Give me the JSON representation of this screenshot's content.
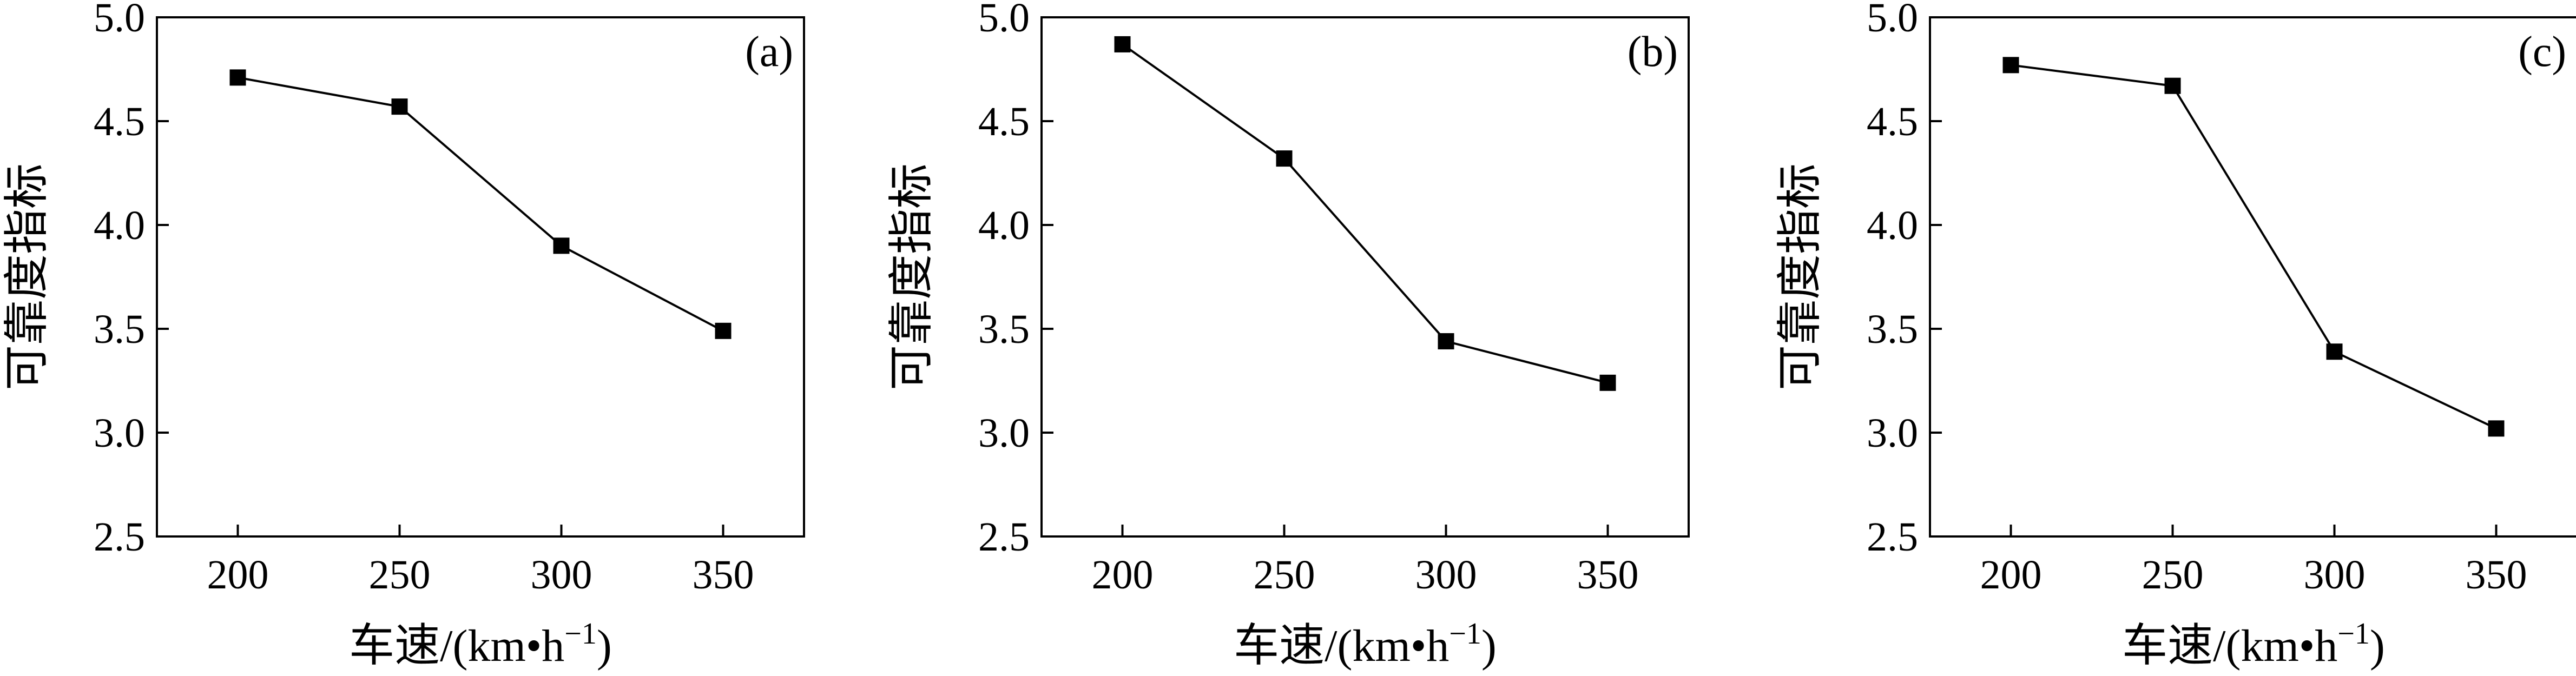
{
  "chart_data": [
    {
      "type": "line",
      "panel_label": "(a)",
      "x": [
        200,
        250,
        300,
        350
      ],
      "series": [
        {
          "values": [
            4.71,
            4.57,
            3.9,
            3.49
          ]
        }
      ],
      "xlabel": "车速/(km•h",
      "xlabel_sup": "−1",
      "xlabel_tail": ")",
      "ylabel": "可靠度指标",
      "xlim": [
        175,
        375
      ],
      "ylim": [
        2.5,
        5.0
      ],
      "xticks": [
        "200",
        "250",
        "300",
        "350"
      ],
      "yticks": [
        "2.5",
        "3.0",
        "3.5",
        "4.0",
        "4.5",
        "5.0"
      ],
      "marker": "square",
      "grid": false
    },
    {
      "type": "line",
      "panel_label": "(b)",
      "x": [
        200,
        250,
        300,
        350
      ],
      "series": [
        {
          "values": [
            4.87,
            4.32,
            3.44,
            3.24
          ]
        }
      ],
      "xlabel": "车速/(km•h",
      "xlabel_sup": "−1",
      "xlabel_tail": ")",
      "ylabel": "可靠度指标",
      "xlim": [
        175,
        375
      ],
      "ylim": [
        2.5,
        5.0
      ],
      "xticks": [
        "200",
        "250",
        "300",
        "350"
      ],
      "yticks": [
        "2.5",
        "3.0",
        "3.5",
        "4.0",
        "4.5",
        "5.0"
      ],
      "marker": "square",
      "grid": false
    },
    {
      "type": "line",
      "panel_label": "(c)",
      "x": [
        200,
        250,
        300,
        350
      ],
      "series": [
        {
          "values": [
            4.77,
            4.67,
            3.39,
            3.02
          ]
        }
      ],
      "xlabel": "车速/(km•h",
      "xlabel_sup": "−1",
      "xlabel_tail": ")",
      "ylabel": "可靠度指标",
      "xlim": [
        175,
        375
      ],
      "ylim": [
        2.5,
        5.0
      ],
      "xticks": [
        "200",
        "250",
        "300",
        "350"
      ],
      "yticks": [
        "2.5",
        "3.0",
        "3.5",
        "4.0",
        "4.5",
        "5.0"
      ],
      "marker": "square",
      "grid": false
    }
  ],
  "colors": {
    "line": "#000000",
    "marker": "#000000",
    "frame": "#000000"
  }
}
